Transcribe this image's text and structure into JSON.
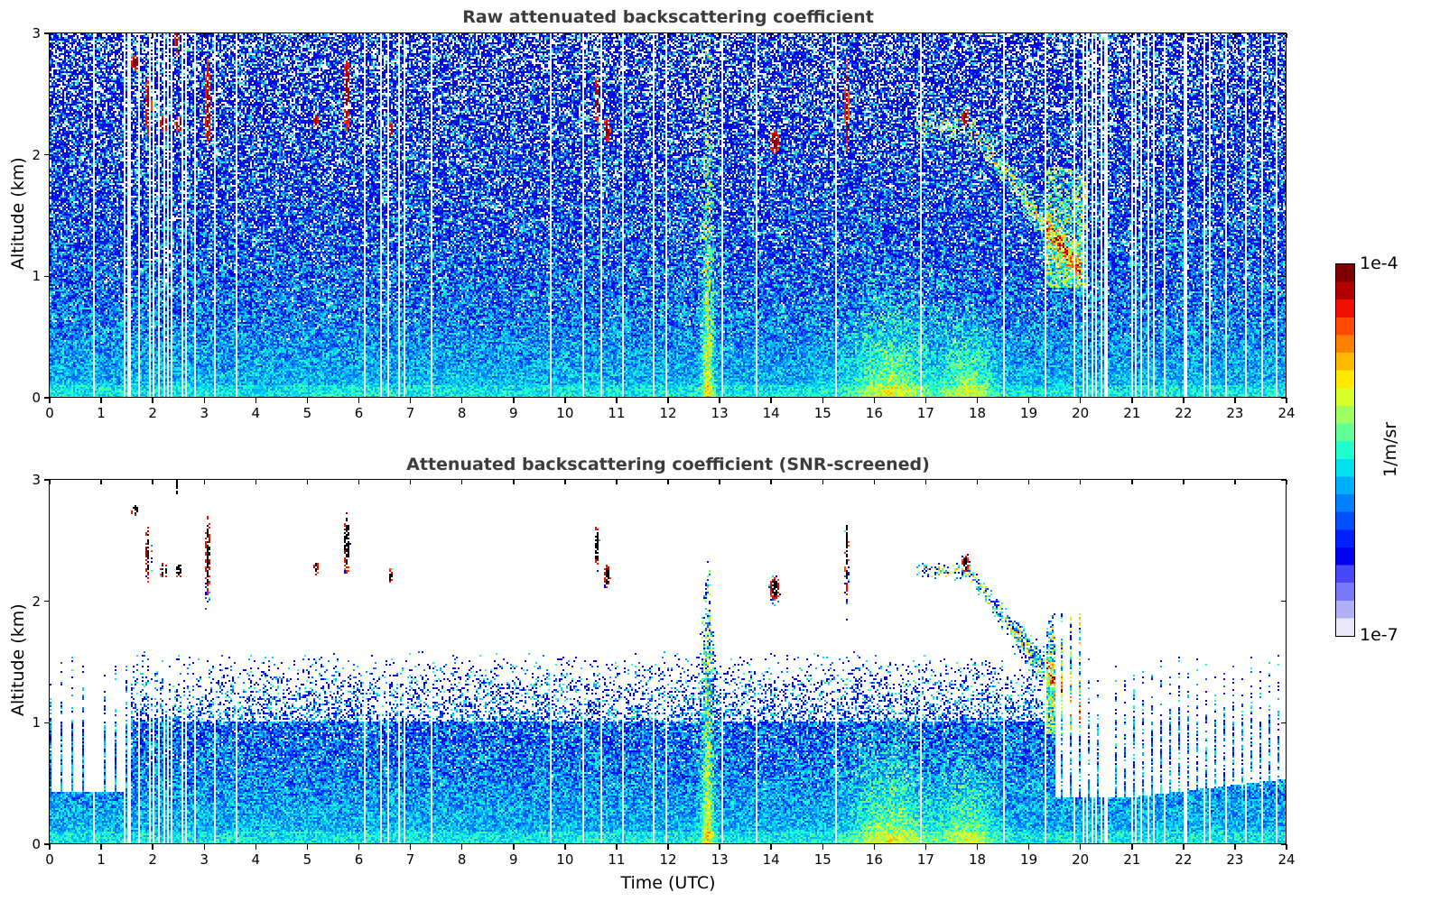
{
  "chart_data": [
    {
      "type": "heatmap",
      "title": "Raw attenuated backscattering coefficient",
      "xlabel": "",
      "ylabel": "Altitude (km)",
      "xlim": [
        0,
        24
      ],
      "ylim": [
        0,
        3
      ],
      "xticks": [
        "0",
        "1",
        "2",
        "3",
        "4",
        "5",
        "6",
        "7",
        "8",
        "9",
        "10",
        "11",
        "12",
        "13",
        "14",
        "15",
        "16",
        "17",
        "18",
        "19",
        "20",
        "21",
        "22",
        "23",
        "24"
      ],
      "yticks": [
        "0",
        "1",
        "2",
        "3"
      ],
      "colorscale": "jet (log)",
      "screened": false,
      "features": [
        {
          "name": "cloud",
          "time_h": [
            1.5,
            3.2
          ],
          "alt_km": [
            2.1,
            3.0
          ],
          "level": "1e-4"
        },
        {
          "name": "cloud",
          "time_h": [
            5.1,
            5.2
          ],
          "alt_km": [
            2.2,
            2.3
          ],
          "level": "1e-4"
        },
        {
          "name": "cloud",
          "time_h": [
            5.7,
            5.8
          ],
          "alt_km": [
            2.2,
            2.7
          ],
          "level": "1e-4"
        },
        {
          "name": "cloud",
          "time_h": [
            10.5,
            10.9
          ],
          "alt_km": [
            2.1,
            2.5
          ],
          "level": "1e-4"
        },
        {
          "name": "cloud",
          "time_h": [
            13.9,
            14.2
          ],
          "alt_km": [
            2.05,
            2.2
          ],
          "level": "1e-4"
        },
        {
          "name": "cloud",
          "time_h": [
            15.4,
            15.5
          ],
          "alt_km": [
            2.2,
            3.0
          ],
          "level": "1e-4"
        },
        {
          "name": "aerosol-layer",
          "time_h": [
            16.9,
            20.0
          ],
          "alt_km": [
            0.9,
            2.35
          ],
          "level": "1e-5"
        },
        {
          "name": "plume",
          "time_h": [
            15.6,
            18.0
          ],
          "alt_km": [
            0,
            1.0
          ],
          "level": "1e-5"
        }
      ]
    },
    {
      "type": "heatmap",
      "title": "Attenuated backscattering coefficient (SNR-screened)",
      "xlabel": "Time (UTC)",
      "ylabel": "Altitude (km)",
      "xlim": [
        0,
        24
      ],
      "ylim": [
        0,
        3
      ],
      "xticks": [
        "0",
        "1",
        "2",
        "3",
        "4",
        "5",
        "6",
        "7",
        "8",
        "9",
        "10",
        "11",
        "12",
        "13",
        "14",
        "15",
        "16",
        "17",
        "18",
        "19",
        "20",
        "21",
        "22",
        "23",
        "24"
      ],
      "yticks": [
        "0",
        "1",
        "2",
        "3"
      ],
      "colorscale": "jet (log)",
      "screened": true
    }
  ],
  "colorbar": {
    "max_label": "1e-4",
    "min_label": "1e-7",
    "unit": "1/m/sr",
    "colors": [
      "#e8e8f8",
      "#b0b0f8",
      "#7878f8",
      "#4848f8",
      "#0000f0",
      "#0020ff",
      "#0050ff",
      "#0080ff",
      "#00b0ff",
      "#00e0f0",
      "#20ffd0",
      "#60ff98",
      "#a0ff60",
      "#d8ff28",
      "#ffe800",
      "#ffb800",
      "#ff8000",
      "#ff4800",
      "#f01000",
      "#b00000",
      "#800000"
    ]
  }
}
